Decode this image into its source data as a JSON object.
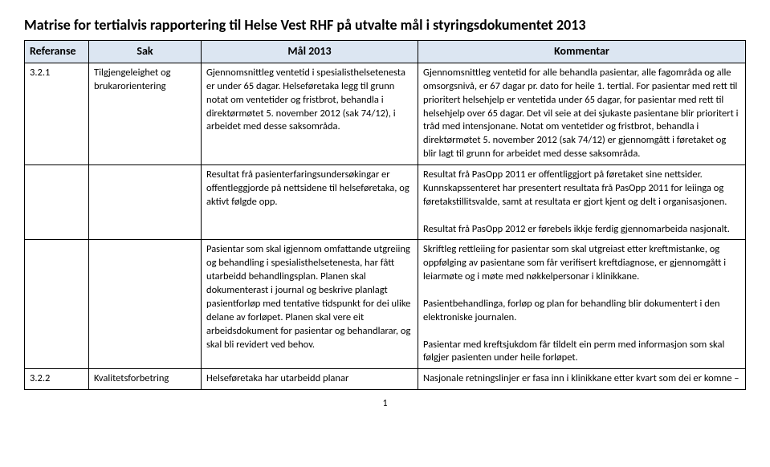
{
  "title": "Matrise for tertialvis rapportering til Helse Vest RHF på utvalte mål i styringsdokumentet 2013",
  "headers": {
    "ref": "Referanse",
    "sak": "Sak",
    "mal": "Mål 2013",
    "kommentar": "Kommentar"
  },
  "colors": {
    "header_bg": "#dce6f2",
    "border": "#000000",
    "text": "#000000",
    "bg": "#ffffff"
  },
  "rows": [
    {
      "ref": "3.2.1",
      "sak": "Tilgjengeleighet og brukarorientering",
      "mal": "Gjennomsnittleg ventetid i spesialisthelsetenesta er under 65 dagar. Helseføretaka legg til grunn notat om ventetider og fristbrot, behandla i direktørmøtet 5. november 2012 (sak 74/12), i arbeidet med desse saksområda.",
      "kommentar": "Gjennomsnittleg ventetid for alle behandla pasientar, alle fagområda og alle omsorgsnivå, er 67 dagar pr. dato for heile 1. tertial. For pasientar med rett til prioritert helsehjelp er ventetida under 65 dagar, for pasientar med rett til helsehjelp over 65 dagar. Det vil seie at dei sjukaste pasientane blir prioritert i tråd med intensjonane. Notat om ventetider og fristbrot, behandla i direktørmøtet 5. november 2012 (sak 74/12) er gjennomgått i føretaket og blir lagt til grunn for arbeidet med desse saksområda."
    },
    {
      "ref": "",
      "sak": "",
      "mal": "Resultat frå pasienterfaringsundersøkingar er offentleggjorde på nettsidene til helseføretaka, og aktivt følgde opp.",
      "kommentar": "Resultat frå PasOpp 2011 er offentliggjort på føretaket sine nettsider. Kunnskapssenteret har presentert resultata frå PasOpp 2011 for leiinga og føretakstillitsvalde, samt at resultata er gjort kjent og delt i organisasjonen.\n\nResultat frå PasOpp 2012 er førebels ikkje ferdig gjennomarbeida nasjonalt."
    },
    {
      "ref": "",
      "sak": "",
      "mal": "Pasientar som skal igjennom omfattande utgreiing og behandling i spesialisthelsetenesta, har fått utarbeidd behandlingsplan. Planen skal dokumenterast i journal og beskrive planlagt pasientforløp med tentative tidspunkt for dei ulike delane av forløpet. Planen skal vere eit arbeidsdokument for pasientar og behandlarar, og skal bli revidert ved behov.",
      "kommentar": "Skriftleg rettleiing for pasientar som skal utgreiast etter kreftmistanke, og oppfølging av pasientane som får verifisert kreftdiagnose, er gjennomgått i leiarmøte og i møte med nøkkelpersonar i klinikkane.\n\nPasientbehandlinga, forløp og plan for behandling blir dokumentert i den elektroniske journalen.\n\nPasientar med kreftsjukdom får tildelt ein perm med informasjon som skal følgjer pasienten under heile forløpet."
    },
    {
      "ref": "3.2.2",
      "sak": "Kvalitetsforbetring",
      "mal": "Helseføretaka har utarbeidd planar",
      "kommentar": "Nasjonale retningslinjer er fasa inn i klinikkane etter kvart som dei er komne –"
    }
  ],
  "page_number": "1"
}
